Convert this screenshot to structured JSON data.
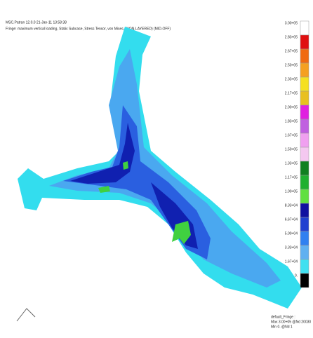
{
  "header": {
    "line1": "MSC.Patran 12.0.0 21-Jan-11 13:58:38",
    "line2": "Fringe: maximum vertical loading, Static Subcase, Stress Tensor, von Mises, (NON-LAYERED) (MID-OFF)"
  },
  "legend": {
    "entries": [
      {
        "label": "3.00+05",
        "color": "#ffffff"
      },
      {
        "label": "2.83+05",
        "color": "#e01010"
      },
      {
        "label": "2.67+05",
        "color": "#f06a10"
      },
      {
        "label": "2.50+05",
        "color": "#f5a020"
      },
      {
        "label": "2.33+05",
        "color": "#f5e020"
      },
      {
        "label": "2.17+05",
        "color": "#e8c020"
      },
      {
        "label": "2.00+05",
        "color": "#e020e0"
      },
      {
        "label": "1.83+05",
        "color": "#c060e0"
      },
      {
        "label": "1.67+05",
        "color": "#f0a0f0"
      },
      {
        "label": "1.50+05",
        "color": "#f4c8f0"
      },
      {
        "label": "1.33+05",
        "color": "#108020"
      },
      {
        "label": "1.17+05",
        "color": "#20b030"
      },
      {
        "label": "1.00+05",
        "color": "#60e040"
      },
      {
        "label": "8.33+04",
        "color": "#1010a0"
      },
      {
        "label": "6.67+04",
        "color": "#2040d0"
      },
      {
        "label": "5.00+04",
        "color": "#3080f0"
      },
      {
        "label": "3.33+04",
        "color": "#60b0f0"
      },
      {
        "label": "1.67+04",
        "color": "#40e0f0"
      },
      {
        "label": "0.",
        "color": "#000000"
      }
    ]
  },
  "footer": {
    "line1": "default_Fringe :",
    "line2": "Max 3.00+05 @Nd 20030",
    "line3": "Min 0. @Nd 1"
  }
}
